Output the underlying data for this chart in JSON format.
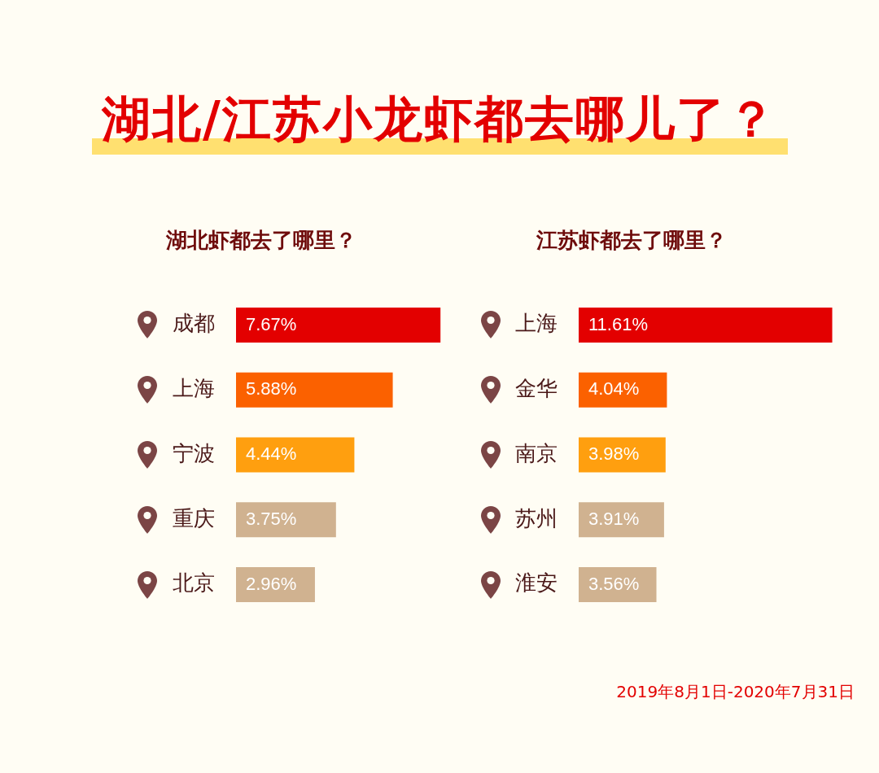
{
  "chart_data": [
    {
      "type": "bar",
      "orientation": "horizontal",
      "title": "湖北/江苏小龙虾都去哪儿了？",
      "subtitle": "湖北虾都去了哪里？",
      "categories": [
        "成都",
        "上海",
        "宁波",
        "重庆",
        "北京"
      ],
      "values": [
        7.67,
        5.88,
        4.44,
        3.75,
        2.96
      ],
      "colors": [
        "#e30000",
        "#fb6100",
        "#ff9f0f",
        "#d0b290",
        "#d0b290"
      ],
      "value_labels": [
        "7.67%",
        "5.88%",
        "4.44%",
        "3.75%",
        "2.96%"
      ]
    },
    {
      "type": "bar",
      "orientation": "horizontal",
      "subtitle": "江苏虾都去了哪里？",
      "categories": [
        "上海",
        "金华",
        "南京",
        "苏州",
        "淮安"
      ],
      "values": [
        11.61,
        4.04,
        3.98,
        3.91,
        3.56
      ],
      "colors": [
        "#e30000",
        "#fb6100",
        "#ff9f0f",
        "#d0b290",
        "#d0b290"
      ],
      "value_labels": [
        "11.61%",
        "4.04%",
        "3.98%",
        "3.91%",
        "3.56%"
      ],
      "annotations": [
        "2019年8月1日-2020年7月31日"
      ]
    }
  ]
}
